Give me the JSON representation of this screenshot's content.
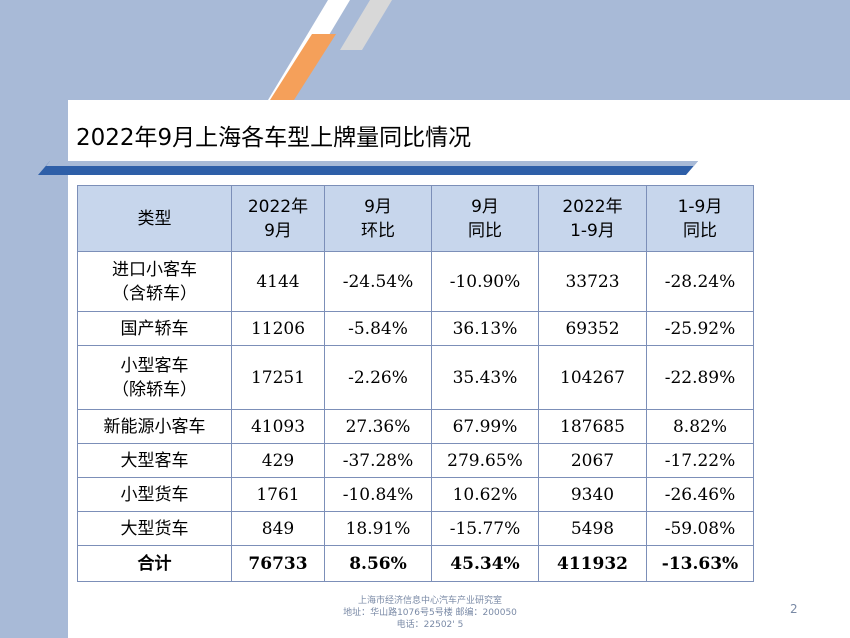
{
  "slide": {
    "title": "2022年9月上海各车型上牌量同比情况",
    "page_number": "2"
  },
  "table": {
    "headers": [
      "类型",
      "2022年\n9月",
      "9月\n环比",
      "9月\n同比",
      "2022年\n1-9月",
      "1-9月\n同比"
    ],
    "rows": [
      {
        "type": "进口小客车\n（含轿车）",
        "sep2022": "4144",
        "mom": "-24.54%",
        "yoy": "-10.90%",
        "ytd": "33723",
        "ytd_yoy": "-28.24%"
      },
      {
        "type": "国产轿车",
        "sep2022": "11206",
        "mom": "-5.84%",
        "yoy": "36.13%",
        "ytd": "69352",
        "ytd_yoy": "-25.92%"
      },
      {
        "type": "小型客车\n（除轿车）",
        "sep2022": "17251",
        "mom": "-2.26%",
        "yoy": "35.43%",
        "ytd": "104267",
        "ytd_yoy": "-22.89%"
      },
      {
        "type": "新能源小客车",
        "sep2022": "41093",
        "mom": "27.36%",
        "yoy": "67.99%",
        "ytd": "187685",
        "ytd_yoy": "8.82%"
      },
      {
        "type": "大型客车",
        "sep2022": "429",
        "mom": "-37.28%",
        "yoy": "279.65%",
        "ytd": "2067",
        "ytd_yoy": "-17.22%"
      },
      {
        "type": "小型货车",
        "sep2022": "1761",
        "mom": "-10.84%",
        "yoy": "10.62%",
        "ytd": "9340",
        "ytd_yoy": "-26.46%"
      },
      {
        "type": "大型货车",
        "sep2022": "849",
        "mom": "18.91%",
        "yoy": "-15.77%",
        "ytd": "5498",
        "ytd_yoy": "-59.08%"
      },
      {
        "type": "合计",
        "sep2022": "76733",
        "mom": "8.56%",
        "yoy": "45.34%",
        "ytd": "411932",
        "ytd_yoy": "-13.63%"
      }
    ]
  },
  "footer": {
    "line1": "上海市经济信息中心汽车产业研究室",
    "line2": "地址：华山路1076号5号楼    邮编：200050",
    "line3": "电话：22502' 5"
  },
  "colors": {
    "band": "#a8bad7",
    "header_fill": "#c7d6ec",
    "border": "#7c8fb8",
    "accent_orange": "#f5a05a"
  }
}
